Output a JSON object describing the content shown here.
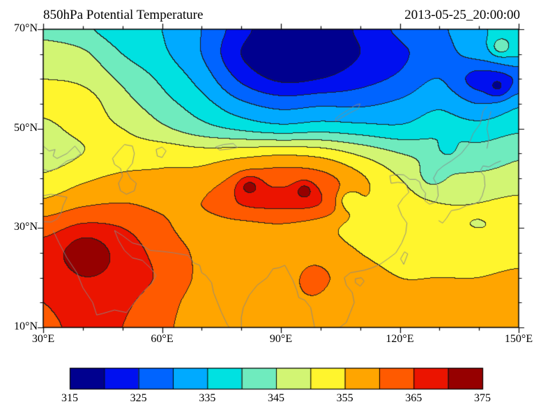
{
  "header": {
    "title": "850hPa Potential Temperature",
    "timestamp": "2013-05-25_20:00:00"
  },
  "axes": {
    "x_range": [
      30,
      150
    ],
    "y_range": [
      10,
      70
    ],
    "x_minor_step": 10,
    "y_minor_step": 5,
    "x_ticks": [
      {
        "value": 30,
        "label": "30°E"
      },
      {
        "value": 60,
        "label": "60°E"
      },
      {
        "value": 90,
        "label": "90°E"
      },
      {
        "value": 120,
        "label": "120°E"
      },
      {
        "value": 150,
        "label": "150°E"
      }
    ],
    "y_ticks": [
      {
        "value": 70,
        "label": "70°N"
      },
      {
        "value": 50,
        "label": "50°N"
      },
      {
        "value": 30,
        "label": "30°N"
      },
      {
        "value": 10,
        "label": "10°N"
      }
    ]
  },
  "colorbar": {
    "colors": [
      "#00008F",
      "#0010F0",
      "#0064FF",
      "#00AAFF",
      "#00E1E1",
      "#6FEBBE",
      "#D2F573",
      "#FFF52D",
      "#FFA500",
      "#FF5A00",
      "#EB1400",
      "#960000"
    ],
    "tick_labels": [
      {
        "value": 315,
        "label": "315"
      },
      {
        "value": 325,
        "label": "325"
      },
      {
        "value": 335,
        "label": "335"
      },
      {
        "value": 345,
        "label": "345"
      },
      {
        "value": 355,
        "label": "355"
      },
      {
        "value": 365,
        "label": "365"
      },
      {
        "value": 375,
        "label": "375"
      }
    ]
  },
  "styles": {
    "contour_line": "#1e1e1e",
    "coastline": "#878787",
    "frame": "#000000",
    "background": "#ffffff"
  },
  "chart_data": {
    "type": "heatmap",
    "title": "850hPa Potential Temperature",
    "timestamp": "2013-05-25_20:00:00",
    "legend_position": "bottom-colorbar",
    "levels_min": 315,
    "levels_max": 375,
    "levels_step": 5,
    "lon": [
      30,
      40,
      50,
      60,
      70,
      80,
      90,
      100,
      110,
      120,
      130,
      140,
      150
    ],
    "lat": [
      70,
      65,
      60,
      55,
      50,
      45,
      40,
      35,
      30,
      25,
      20,
      15,
      10
    ],
    "theta_grid": [
      [
        343,
        341,
        337,
        335,
        330,
        322,
        316,
        316,
        321,
        326,
        329,
        334,
        338
      ],
      [
        348,
        346,
        340,
        336,
        330,
        320,
        315,
        316,
        320,
        324,
        328,
        332,
        336
      ],
      [
        350,
        349,
        344,
        339,
        333,
        324,
        319,
        320,
        323,
        326,
        330,
        323,
        326
      ],
      [
        351,
        352,
        347,
        342,
        337,
        331,
        328,
        329,
        329,
        331,
        334,
        330,
        334
      ],
      [
        349,
        351,
        350,
        346,
        342,
        339,
        337,
        338,
        337,
        336,
        338,
        337,
        339
      ],
      [
        347,
        350,
        352,
        353,
        352,
        353,
        354,
        353,
        349,
        345,
        343,
        342,
        344
      ],
      [
        351,
        354,
        356,
        356,
        357,
        361,
        363,
        362,
        356,
        350,
        346,
        346,
        347
      ],
      [
        356,
        359,
        360,
        359,
        360,
        365,
        366,
        365,
        356,
        352,
        350,
        350,
        351
      ],
      [
        363,
        366,
        365,
        361,
        358,
        358,
        359,
        357,
        353,
        352,
        351,
        350,
        351
      ],
      [
        367,
        371,
        368,
        363,
        359,
        357,
        356,
        358,
        355,
        353,
        352,
        352,
        353
      ],
      [
        366,
        369,
        368,
        364,
        359,
        357,
        356,
        360,
        357,
        355,
        355,
        355,
        356
      ],
      [
        365,
        367,
        366,
        362,
        358,
        356,
        356,
        358,
        356,
        356,
        356,
        356,
        357
      ],
      [
        364,
        366,
        365,
        361,
        358,
        356,
        355,
        356,
        356,
        356,
        357,
        357,
        357
      ]
    ],
    "hotspots": [
      {
        "lon": 82,
        "lat": 38.5,
        "amp": 8,
        "rx": 2.2,
        "ry": 1.5
      },
      {
        "lon": 96,
        "lat": 37.5,
        "amp": 7,
        "rx": 1.6,
        "ry": 1.2
      },
      {
        "lon": 41,
        "lat": 24.5,
        "amp": 4,
        "rx": 3.0,
        "ry": 2.5
      },
      {
        "lon": 145,
        "lat": 58,
        "amp": -6,
        "rx": 2.0,
        "ry": 1.6
      },
      {
        "lon": 145.5,
        "lat": 66.5,
        "amp": 8,
        "rx": 1.6,
        "ry": 1.2
      },
      {
        "lon": 107,
        "lat": 35.5,
        "amp": -7,
        "rx": 2.0,
        "ry": 1.5
      },
      {
        "lon": 132,
        "lat": 46,
        "amp": -5,
        "rx": 1.5,
        "ry": 1.2
      },
      {
        "lon": 128,
        "lat": 40.5,
        "amp": -4,
        "rx": 2.2,
        "ry": 1.8
      },
      {
        "lon": 97,
        "lat": 19,
        "amp": 3,
        "rx": 2.5,
        "ry": 2.5
      }
    ],
    "coastlines": [
      [
        [
          32.5,
          29.5
        ],
        [
          34,
          27
        ],
        [
          36,
          24
        ],
        [
          38.5,
          21
        ],
        [
          40,
          18
        ],
        [
          42.5,
          15
        ],
        [
          43.5,
          12.5
        ],
        [
          45,
          12.8
        ],
        [
          48,
          13.5
        ],
        [
          51,
          13
        ],
        [
          53,
          15
        ],
        [
          55,
          17
        ],
        [
          57.5,
          19
        ],
        [
          58.5,
          20.5
        ],
        [
          57,
          22
        ],
        [
          55,
          23.5
        ],
        [
          52.5,
          24
        ],
        [
          50.5,
          25.5
        ],
        [
          49,
          27.5
        ],
        [
          48,
          29.5
        ]
      ],
      [
        [
          48,
          29.5
        ],
        [
          50,
          28.5
        ],
        [
          52.5,
          27
        ],
        [
          55,
          26.5
        ],
        [
          57,
          25.5
        ],
        [
          60,
          25.3
        ],
        [
          63,
          25
        ],
        [
          66.5,
          24.5
        ],
        [
          68,
          23
        ],
        [
          69.5,
          22.5
        ],
        [
          70,
          21
        ],
        [
          71,
          20.5
        ],
        [
          72.5,
          19
        ],
        [
          73,
          17
        ],
        [
          74,
          15
        ],
        [
          75,
          13
        ],
        [
          76.5,
          10.5
        ],
        [
          77,
          10
        ]
      ],
      [
        [
          80,
          10
        ],
        [
          80,
          12
        ],
        [
          80.5,
          14
        ],
        [
          82,
          16.5
        ],
        [
          84,
          18.5
        ],
        [
          86.5,
          20
        ],
        [
          88,
          21.8
        ],
        [
          89.5,
          22
        ],
        [
          91,
          22.5
        ],
        [
          92,
          21
        ],
        [
          93,
          19.5
        ],
        [
          94,
          17.5
        ],
        [
          94.5,
          16
        ],
        [
          96,
          15.5
        ],
        [
          97.5,
          14
        ],
        [
          98,
          12
        ],
        [
          98.5,
          10
        ]
      ],
      [
        [
          104.8,
          10
        ],
        [
          106.5,
          11
        ],
        [
          107.5,
          13
        ],
        [
          108.5,
          15
        ],
        [
          108,
          17
        ],
        [
          106.5,
          18.5
        ],
        [
          106,
          20
        ],
        [
          107.5,
          21
        ],
        [
          109.5,
          21.3
        ],
        [
          111,
          21.5
        ],
        [
          113,
          22
        ],
        [
          115,
          22.7
        ],
        [
          117,
          23.8
        ],
        [
          119,
          25
        ],
        [
          120.5,
          27
        ],
        [
          121.5,
          29
        ],
        [
          121.8,
          31
        ],
        [
          120.5,
          32.5
        ],
        [
          119.5,
          34.5
        ],
        [
          120.8,
          36
        ],
        [
          122.3,
          37.2
        ],
        [
          121.5,
          39
        ],
        [
          119.5,
          39.2
        ],
        [
          117.8,
          39
        ],
        [
          117.5,
          40.5
        ],
        [
          119,
          40.8
        ],
        [
          121,
          40.7
        ],
        [
          122.5,
          39.8
        ],
        [
          124,
          39.8
        ],
        [
          125,
          39.3
        ],
        [
          125.5,
          38
        ],
        [
          126.5,
          37
        ],
        [
          126.3,
          35.5
        ],
        [
          127.5,
          34.8
        ],
        [
          129,
          35.2
        ],
        [
          129.7,
          36.5
        ],
        [
          129.5,
          38.5
        ],
        [
          128.5,
          40
        ],
        [
          129.5,
          41.5
        ],
        [
          131,
          42.5
        ],
        [
          133,
          43.5
        ],
        [
          135.5,
          45
        ],
        [
          137.5,
          47
        ],
        [
          138.5,
          49
        ],
        [
          140.3,
          51
        ],
        [
          141,
          53.5
        ],
        [
          142,
          54.5
        ]
      ],
      [
        [
          129.8,
          31.5
        ],
        [
          130.8,
          31
        ],
        [
          131.8,
          32
        ],
        [
          133,
          33.5
        ],
        [
          135,
          33.8
        ],
        [
          136.8,
          34.5
        ],
        [
          138.5,
          34.8
        ],
        [
          140,
          35.3
        ],
        [
          140.8,
          36.5
        ],
        [
          141.5,
          38.5
        ],
        [
          141.3,
          40.5
        ],
        [
          140.3,
          41.5
        ],
        [
          141,
          42.5
        ],
        [
          142.5,
          42.3
        ],
        [
          144,
          43
        ],
        [
          145.5,
          43.5
        ]
      ],
      [
        [
          142,
          46
        ],
        [
          142.5,
          48
        ],
        [
          142,
          50
        ],
        [
          142.5,
          52
        ],
        [
          143,
          53.5
        ]
      ],
      [
        [
          47.5,
          44
        ],
        [
          49,
          45.5
        ],
        [
          50.5,
          46.8
        ],
        [
          52.5,
          46.5
        ],
        [
          53,
          45
        ],
        [
          52.5,
          43
        ],
        [
          51,
          41.5
        ],
        [
          52,
          40
        ],
        [
          53.5,
          39
        ],
        [
          53,
          37.5
        ],
        [
          51,
          36.8
        ],
        [
          49.5,
          37.5
        ],
        [
          49,
          39
        ],
        [
          50,
          40.5
        ],
        [
          49.5,
          42
        ],
        [
          48,
          42.8
        ],
        [
          47.5,
          44
        ]
      ],
      [
        [
          30,
          46.5
        ],
        [
          31.5,
          45.5
        ],
        [
          33,
          45.8
        ],
        [
          32.5,
          44.5
        ],
        [
          33.5,
          44
        ],
        [
          36,
          45
        ],
        [
          38,
          46.5
        ],
        [
          39.5,
          45
        ],
        [
          38,
          44
        ],
        [
          36,
          43.5
        ],
        [
          33.5,
          42
        ],
        [
          31.5,
          41.5
        ],
        [
          30,
          41.8
        ]
      ],
      [
        [
          30,
          31.3
        ],
        [
          32,
          31.2
        ],
        [
          33.5,
          31.8
        ],
        [
          34.5,
          33
        ],
        [
          35,
          34.5
        ],
        [
          36,
          36.2
        ],
        [
          34,
          36.5
        ],
        [
          32,
          36.8
        ],
        [
          30,
          36.5
        ]
      ],
      [
        [
          120.2,
          23.8
        ],
        [
          121.2,
          25.2
        ],
        [
          122,
          24.8
        ],
        [
          121,
          22.7
        ],
        [
          120.2,
          23.8
        ]
      ],
      [
        [
          108.8,
          19.8
        ],
        [
          110.3,
          20
        ],
        [
          111,
          19.3
        ],
        [
          110,
          18.3
        ],
        [
          108.8,
          19
        ],
        [
          108.8,
          19.8
        ]
      ],
      [
        [
          58.5,
          45.8
        ],
        [
          60,
          46.3
        ],
        [
          61,
          45.5
        ],
        [
          60,
          44.2
        ],
        [
          58.8,
          44.5
        ],
        [
          58.5,
          45.8
        ]
      ],
      [
        [
          73.5,
          46.3
        ],
        [
          75.5,
          46.8
        ],
        [
          78,
          47
        ],
        [
          79,
          46.2
        ],
        [
          77,
          45.9
        ],
        [
          74.5,
          45.7
        ],
        [
          73.5,
          46.3
        ]
      ],
      [
        [
          103.8,
          51.5
        ],
        [
          105.5,
          52.3
        ],
        [
          107.5,
          53.2
        ],
        [
          109.5,
          54
        ],
        [
          110,
          55
        ],
        [
          109,
          54.8
        ],
        [
          107,
          53.8
        ],
        [
          105,
          52.8
        ],
        [
          103.8,
          52
        ],
        [
          103.8,
          51.5
        ]
      ]
    ]
  }
}
